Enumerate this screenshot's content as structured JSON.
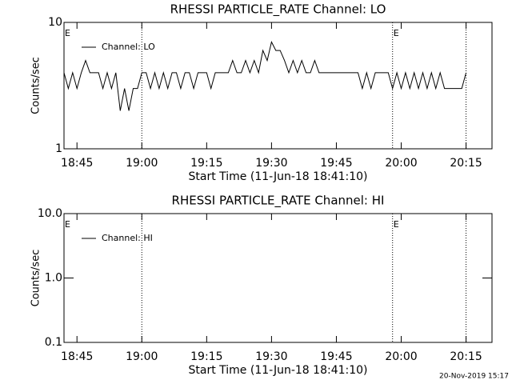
{
  "chart_data": [
    {
      "type": "line",
      "title": "RHESSI PARTICLE_RATE Channel: LO",
      "xlabel": "Start Time (11-Jun-18 18:41:10)",
      "ylabel": "Counts/sec",
      "log_y": true,
      "legend": "upper left",
      "x": [
        "18:42",
        "18:43",
        "18:44",
        "18:45",
        "18:46",
        "18:47",
        "18:48",
        "18:49",
        "18:50",
        "18:51",
        "18:52",
        "18:53",
        "18:54",
        "18:55",
        "18:56",
        "18:57",
        "18:58",
        "18:59",
        "19:00",
        "19:01",
        "19:02",
        "19:03",
        "19:04",
        "19:05",
        "19:06",
        "19:07",
        "19:08",
        "19:09",
        "19:10",
        "19:11",
        "19:12",
        "19:13",
        "19:14",
        "19:15",
        "19:16",
        "19:17",
        "19:18",
        "19:19",
        "19:20",
        "19:21",
        "19:22",
        "19:23",
        "19:24",
        "19:25",
        "19:26",
        "19:27",
        "19:28",
        "19:29",
        "19:30",
        "19:31",
        "19:32",
        "19:33",
        "19:34",
        "19:35",
        "19:36",
        "19:37",
        "19:38",
        "19:39",
        "19:40",
        "19:41",
        "19:42",
        "19:43",
        "19:44",
        "19:45",
        "19:46",
        "19:47",
        "19:48",
        "19:49",
        "19:50",
        "19:51",
        "19:52",
        "19:53",
        "19:54",
        "19:55",
        "19:56",
        "19:57",
        "19:58",
        "19:59",
        "20:00",
        "20:01",
        "20:02",
        "20:03",
        "20:04",
        "20:05",
        "20:06",
        "20:07",
        "20:08",
        "20:09",
        "20:10",
        "20:11",
        "20:12",
        "20:13",
        "20:14",
        "20:15"
      ],
      "series": [
        {
          "name": "Channel: LO",
          "color": "#000000",
          "values": [
            4,
            3,
            4,
            3,
            4,
            5,
            4,
            4,
            4,
            3,
            4,
            3,
            4,
            2,
            3,
            2,
            3,
            3,
            4,
            4,
            3,
            4,
            3,
            4,
            3,
            4,
            4,
            3,
            4,
            4,
            3,
            4,
            4,
            4,
            3,
            4,
            4,
            4,
            4,
            5,
            4,
            4,
            5,
            4,
            5,
            4,
            6,
            5,
            7,
            6,
            6,
            5,
            4,
            5,
            4,
            5,
            4,
            4,
            5,
            4,
            4,
            4,
            4,
            4,
            4,
            4,
            4,
            4,
            4,
            3,
            4,
            3,
            4,
            4,
            4,
            4,
            3,
            4,
            3,
            4,
            3,
            4,
            3,
            4,
            3,
            4,
            3,
            4,
            3,
            3,
            3,
            3,
            3,
            4
          ]
        }
      ],
      "xlim": [
        "18:42",
        "20:21"
      ],
      "xticks": [
        "18:45",
        "19:00",
        "19:15",
        "19:30",
        "19:45",
        "20:00",
        "20:15"
      ],
      "ylim": [
        1,
        10
      ],
      "yticks": [
        1,
        10
      ],
      "vlines": [
        "19:00",
        "19:58",
        "20:15"
      ],
      "markers": [
        {
          "x": "18:42",
          "label": "E"
        },
        {
          "x": "19:58",
          "label": "E"
        }
      ]
    },
    {
      "type": "line",
      "title": "RHESSI PARTICLE_RATE Channel: HI",
      "xlabel": "Start Time (11-Jun-18 18:41:10)",
      "ylabel": "Counts/sec",
      "log_y": true,
      "legend": "upper left",
      "x": [],
      "series": [
        {
          "name": "Channel: HI",
          "color": "#000000",
          "values": []
        }
      ],
      "xlim": [
        "18:42",
        "20:21"
      ],
      "xticks": [
        "18:45",
        "19:00",
        "19:15",
        "19:30",
        "19:45",
        "20:00",
        "20:15"
      ],
      "ylim": [
        0.1,
        10
      ],
      "yticks": [
        0.1,
        {
          "value": 1,
          "label": "1.0"
        },
        {
          "value": 10,
          "label": "10.0"
        }
      ],
      "vlines": [
        "19:00",
        "19:58",
        "20:15"
      ],
      "markers": [
        {
          "x": "18:42",
          "label": "E"
        },
        {
          "x": "19:58",
          "label": "E"
        }
      ]
    }
  ],
  "footer": "20-Nov-2019 15:17"
}
